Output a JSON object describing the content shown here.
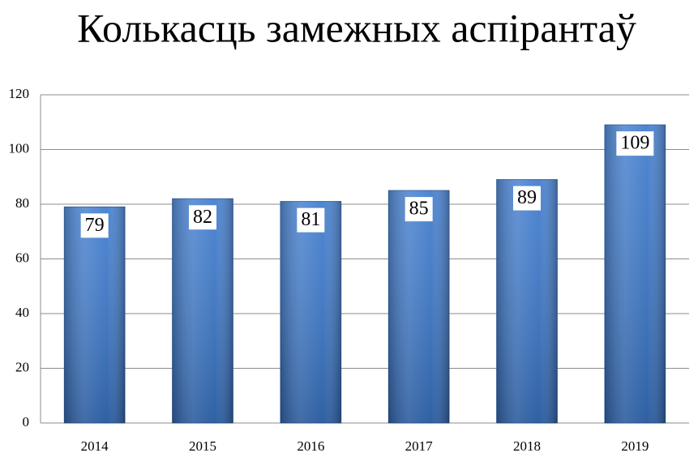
{
  "chart_data": {
    "type": "bar",
    "title": "Колькасць замежных аспірантаў",
    "categories": [
      "2014",
      "2015",
      "2016",
      "2017",
      "2018",
      "2019"
    ],
    "values": [
      79,
      82,
      81,
      85,
      89,
      109
    ],
    "color": "#3a78cc",
    "ylim": [
      0,
      120
    ],
    "yticks": [
      0,
      20,
      40,
      60,
      80,
      100,
      120
    ],
    "grid": true
  }
}
